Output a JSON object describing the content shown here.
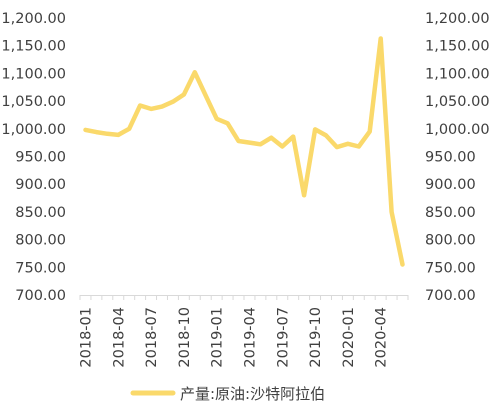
{
  "chart_data": {
    "type": "line",
    "title": "",
    "xlabel": "",
    "ylabel": "",
    "ylim": [
      700,
      1200
    ],
    "y_ticks": [
      "1,200.00",
      "1,150.00",
      "1,100.00",
      "1,050.00",
      "1,000.00",
      "950.00",
      "900.00",
      "850.00",
      "800.00",
      "750.00",
      "700.00"
    ],
    "secondary_y_ticks": [
      "1,200.00",
      "1,150.00",
      "1,100.00",
      "1,050.00",
      "1,000.00",
      "950.00",
      "900.00",
      "850.00",
      "800.00",
      "750.00",
      "700.00"
    ],
    "x_tick_labels": [
      "2018-01",
      "2018-04",
      "2018-07",
      "2018-10",
      "2019-01",
      "2019-04",
      "2019-07",
      "2019-10",
      "2020-01",
      "2020-04"
    ],
    "x": [
      "2018-01",
      "2018-02",
      "2018-03",
      "2018-04",
      "2018-05",
      "2018-06",
      "2018-07",
      "2018-08",
      "2018-09",
      "2018-10",
      "2018-11",
      "2018-12",
      "2019-01",
      "2019-02",
      "2019-03",
      "2019-04",
      "2019-05",
      "2019-06",
      "2019-07",
      "2019-08",
      "2019-09",
      "2019-10",
      "2019-11",
      "2019-12",
      "2020-01",
      "2020-02",
      "2020-03",
      "2020-04",
      "2020-05",
      "2020-06"
    ],
    "series": [
      {
        "name": "产量:原油:沙特阿拉伯",
        "color": "#FAD96B",
        "values": [
          998,
          994,
          991,
          989,
          1000,
          1042,
          1036,
          1040,
          1049,
          1062,
          1102,
          1060,
          1018,
          1010,
          978,
          975,
          972,
          984,
          968,
          986,
          880,
          999,
          988,
          967,
          973,
          968,
          995,
          1163,
          850,
          755
        ]
      }
    ],
    "grid": false,
    "legend": "bottom"
  }
}
